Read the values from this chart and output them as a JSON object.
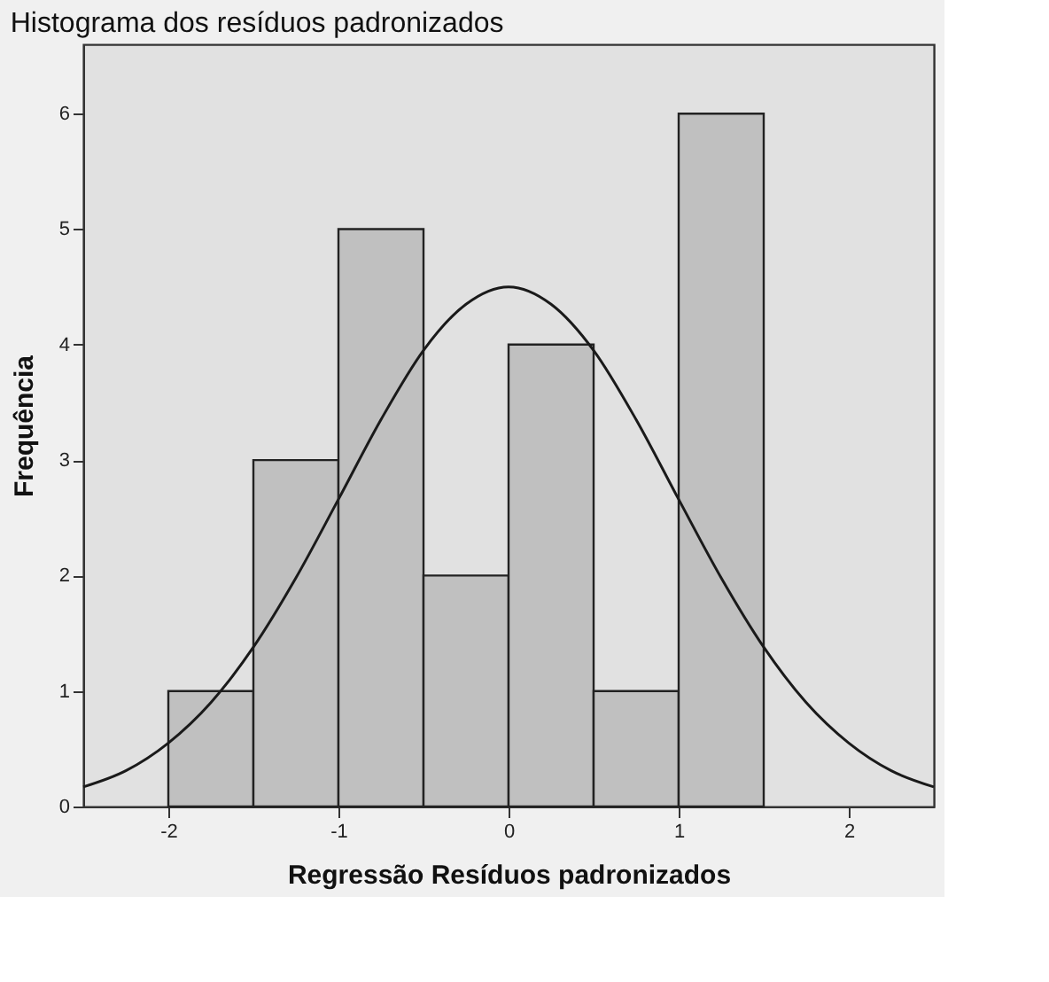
{
  "chart_data": {
    "type": "histogram",
    "title": "Histograma dos resíduos padronizados",
    "xlabel": "Regressão Resíduos padronizados",
    "ylabel": "Frequência",
    "xlim": [
      -2.5,
      2.5
    ],
    "xticks": [
      -2,
      -1,
      0,
      1,
      2
    ],
    "ylim": [
      0,
      6.6
    ],
    "yticks": [
      0,
      1,
      2,
      3,
      4,
      5,
      6
    ],
    "grid": false,
    "series": [
      {
        "color": "#c0c0c0",
        "bins": [
          -2,
          -1.5,
          -1,
          -0.5,
          0,
          0.5,
          1,
          1.5
        ],
        "values": [
          1,
          3,
          5,
          2,
          4,
          1,
          6
        ]
      },
      {
        "type": "line",
        "color": "#1a1a1a",
        "x": [
          -2.5,
          -2.25,
          -2,
          -1.75,
          -1.5,
          -1.25,
          -1,
          -0.75,
          -0.5,
          -0.25,
          0,
          0.25,
          0.5,
          0.75,
          1,
          1.25,
          1.5,
          1.75,
          2,
          2.25,
          2.5
        ],
        "values": [
          0.17,
          0.31,
          0.55,
          0.9,
          1.38,
          1.98,
          2.66,
          3.35,
          3.95,
          4.35,
          4.5,
          4.35,
          3.95,
          3.35,
          2.66,
          1.98,
          1.38,
          0.9,
          0.55,
          0.31,
          0.17
        ]
      }
    ]
  }
}
